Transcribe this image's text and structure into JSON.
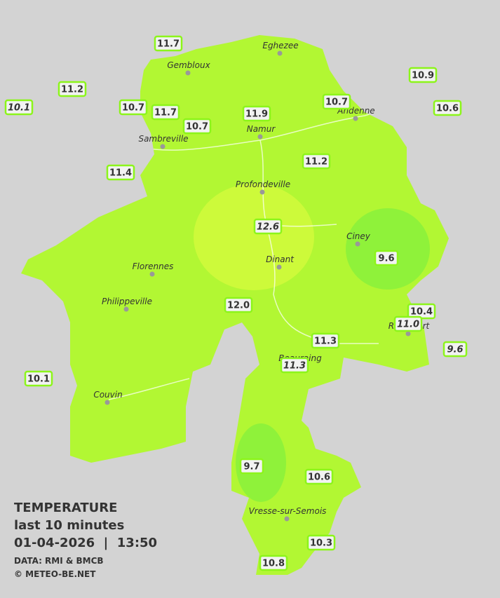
{
  "towns": [
    "Eghezee",
    "Gembloux",
    "Andenne",
    "Namur",
    "Sambreville",
    "Profondeville",
    "Ciney",
    "Dinant",
    "Florennes",
    "Philippeville",
    "Rochefort",
    "Beauraing",
    "Couvin",
    "Vresse-sur-Semois"
  ],
  "stations": [
    {
      "label": "11.7"
    },
    {
      "label": "11.2"
    },
    {
      "label": "10.1",
      "style": "italic"
    },
    {
      "label": "10.7"
    },
    {
      "label": "11.7"
    },
    {
      "label": "10.7"
    },
    {
      "label": "11.9"
    },
    {
      "label": "10.7"
    },
    {
      "label": "10.9"
    },
    {
      "label": "10.6"
    },
    {
      "label": "11.4"
    },
    {
      "label": "11.2"
    },
    {
      "label": "12.6",
      "style": "italic"
    },
    {
      "label": "9.6"
    },
    {
      "label": "12.0"
    },
    {
      "label": "10.4"
    },
    {
      "label": "11.0",
      "style": "italic"
    },
    {
      "label": "11.3"
    },
    {
      "label": "11.3",
      "style": "italic"
    },
    {
      "label": "9.6",
      "style": "italic"
    },
    {
      "label": "10.1"
    },
    {
      "label": "9.7"
    },
    {
      "label": "10.6"
    },
    {
      "label": "10.3"
    },
    {
      "label": "10.8"
    }
  ],
  "legend": {
    "title": "TEMPERATURE",
    "subtitle": "last 10 minutes",
    "datetime": "01-04-2026  |  13:50",
    "source": "DATA: RMI & BMCB",
    "copyright": "© METEO-BE.NET"
  }
}
